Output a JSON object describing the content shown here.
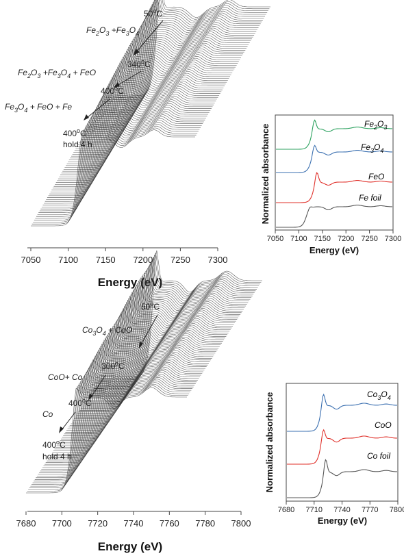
{
  "colors": {
    "green": "#2ca25f",
    "blue": "#3a6fb0",
    "red": "#e0302a",
    "gray": "#555555",
    "stack": "#333333"
  },
  "chart_data": [
    {
      "id": "fe-stack",
      "type": "line",
      "description_kind": "waterfall",
      "xlabel": "Energy (eV)",
      "xticks": [
        7050,
        7100,
        7150,
        7200,
        7250,
        7300
      ],
      "xlim": [
        7050,
        7300
      ],
      "stages": [
        {
          "temp": "50",
          "phase": "Fe2O3 +Fe3O4"
        },
        {
          "temp": "340",
          "phase": "Fe2O3 +Fe3O4 + FeO"
        },
        {
          "temp": "400",
          "phase": "Fe3O4 + FeO + Fe"
        },
        {
          "temp": "400",
          "note": "hold 4 h"
        }
      ],
      "stage_labels": {
        "t1": "50",
        "t2": "340",
        "t3": "400",
        "t4": "400",
        "hold": "hold 4 h",
        "unit": "C"
      }
    },
    {
      "id": "fe-ref",
      "type": "line",
      "xlabel": "Energy (eV)",
      "ylabel": "Normalized absorbance",
      "xticks": [
        7050,
        7100,
        7150,
        7200,
        7250,
        7300
      ],
      "xlim": [
        7050,
        7300
      ],
      "series": [
        {
          "name": "Fe2O3",
          "color": "green"
        },
        {
          "name": "Fe3O4",
          "color": "blue"
        },
        {
          "name": "FeO",
          "color": "red"
        },
        {
          "name": "Fe foil",
          "color": "gray"
        }
      ]
    },
    {
      "id": "co-stack",
      "type": "line",
      "description_kind": "waterfall",
      "xlabel": "Energy (eV)",
      "xticks": [
        7680,
        7700,
        7720,
        7740,
        7760,
        7780,
        7800
      ],
      "xlim": [
        7680,
        7800
      ],
      "stage_labels": {
        "t1": "50",
        "t2": "300",
        "t3": "400",
        "t4": "400",
        "hold": "hold 4 h",
        "unit": "C"
      }
    },
    {
      "id": "co-ref",
      "type": "line",
      "xlabel": "Energy (eV)",
      "ylabel": "Normalized absorbance",
      "xticks": [
        7680,
        7710,
        7740,
        7770,
        7800
      ],
      "xlim": [
        7680,
        7800
      ],
      "series": [
        {
          "name": "Co3O4",
          "color": "blue"
        },
        {
          "name": "CoO",
          "color": "red"
        },
        {
          "name": "Co foil",
          "color": "gray"
        }
      ]
    }
  ]
}
